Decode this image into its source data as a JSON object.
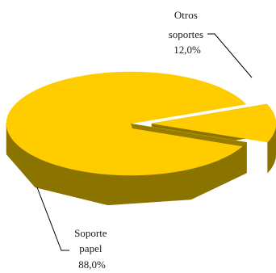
{
  "chart_data": {
    "type": "pie",
    "style": "3d-exploded",
    "slices": [
      {
        "label_lines": [
          "Otros",
          "soportes",
          "12,0%"
        ],
        "value": 12.0,
        "color": "#ffcc00",
        "side_color": "#8b7300",
        "exploded": true
      },
      {
        "label_lines": [
          "Soporte",
          "papel",
          "88,0%"
        ],
        "value": 88.0,
        "color": "#ffcc00",
        "side_color": "#8b7300",
        "exploded": false
      }
    ],
    "legend": "none"
  }
}
